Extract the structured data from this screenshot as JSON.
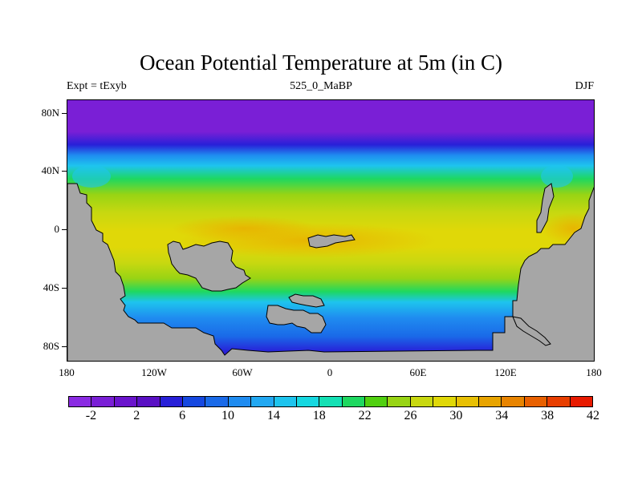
{
  "title": "Ocean Potential Temperature at 5m (in C)",
  "subtitle_left": "Expt = tExyb",
  "subtitle_center": "525_0_MaBP",
  "subtitle_right": "DJF",
  "lat_labels": [
    "80N",
    "40N",
    "0",
    "40S",
    "80S"
  ],
  "lon_labels": [
    "180",
    "120W",
    "60W",
    "0",
    "60E",
    "120E",
    "180"
  ],
  "colorbar": {
    "colors": [
      "#8a2be2",
      "#7a1fd6",
      "#6a14cc",
      "#5a10c4",
      "#2820d8",
      "#1648e0",
      "#1a6ae8",
      "#1f8cf0",
      "#22a8f2",
      "#1ec4ee",
      "#16d8e0",
      "#14e0b4",
      "#1ed860",
      "#50d010",
      "#98d414",
      "#c8d810",
      "#e0d808",
      "#e8c004",
      "#e8a400",
      "#e88400",
      "#e86000",
      "#e83e00",
      "#e81a00"
    ],
    "labels": [
      "-2",
      "2",
      "6",
      "10",
      "14",
      "18",
      "22",
      "26",
      "30",
      "34",
      "38",
      "42"
    ]
  },
  "land_color": "#a6a6a6"
}
